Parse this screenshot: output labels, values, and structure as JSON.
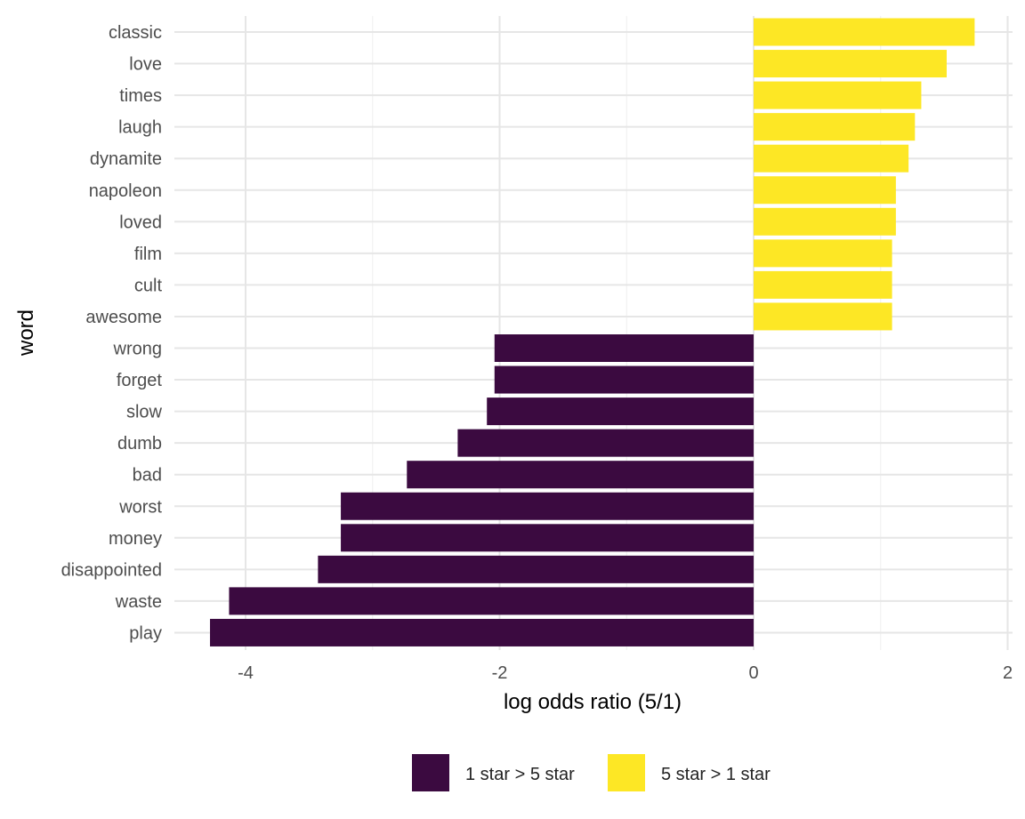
{
  "chart_data": {
    "type": "bar",
    "orientation": "horizontal",
    "title": "",
    "xlabel": "log odds ratio (5/1)",
    "ylabel": "word",
    "xlim": [
      -4.5,
      2.1
    ],
    "x_ticks": [
      -4,
      -2,
      0,
      2
    ],
    "x_tick_labels": [
      "-4",
      "-2",
      "0",
      "2"
    ],
    "grid": true,
    "legend_position": "bottom",
    "categories": [
      "classic",
      "love",
      "times",
      "laugh",
      "dynamite",
      "napoleon",
      "loved",
      "film",
      "cult",
      "awesome",
      "wrong",
      "forget",
      "slow",
      "dumb",
      "bad",
      "worst",
      "money",
      "disappointed",
      "waste",
      "play"
    ],
    "values": [
      1.74,
      1.52,
      1.32,
      1.27,
      1.22,
      1.12,
      1.12,
      1.09,
      1.09,
      1.09,
      -2.04,
      -2.04,
      -2.1,
      -2.33,
      -2.73,
      -3.25,
      -3.25,
      -3.43,
      -4.13,
      -4.28
    ],
    "groups": [
      "5 star > 1 star",
      "5 star > 1 star",
      "5 star > 1 star",
      "5 star > 1 star",
      "5 star > 1 star",
      "5 star > 1 star",
      "5 star > 1 star",
      "5 star > 1 star",
      "5 star > 1 star",
      "5 star > 1 star",
      "1 star > 5 star",
      "1 star > 5 star",
      "1 star > 5 star",
      "1 star > 5 star",
      "1 star > 5 star",
      "1 star > 5 star",
      "1 star > 5 star",
      "1 star > 5 star",
      "1 star > 5 star",
      "1 star > 5 star"
    ],
    "legend": [
      {
        "label": "1 star > 5 star",
        "color": "#3b0a40"
      },
      {
        "label": "5 star > 1 star",
        "color": "#fde725"
      }
    ]
  }
}
